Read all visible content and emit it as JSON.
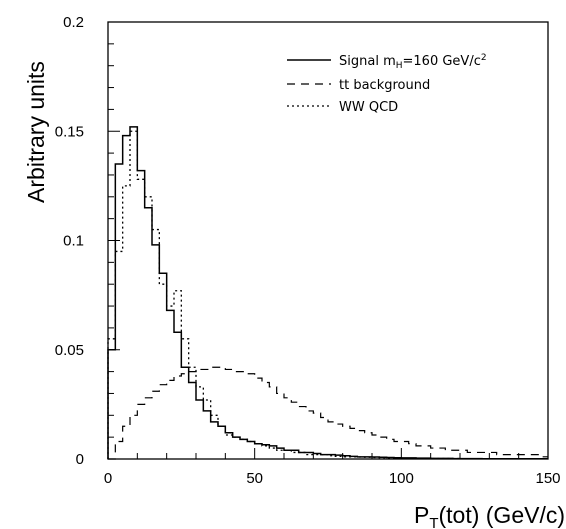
{
  "chart_data": {
    "type": "line",
    "xlabel": "P_T(tot) (GeV/c)",
    "xlabel_main": "P",
    "xlabel_sub": "T",
    "xlabel_rest": "(tot) (GeV/c)",
    "ylabel": "Arbitrary units",
    "xlim": [
      0,
      150
    ],
    "ylim": [
      0,
      0.2
    ],
    "x_ticks": [
      0,
      50,
      100,
      150
    ],
    "x_tick_labels": [
      "0",
      "50",
      "100",
      "150"
    ],
    "y_ticks": [
      0,
      0.05,
      0.1,
      0.15,
      0.2
    ],
    "y_tick_labels": [
      "0",
      "0.05",
      "0.1",
      "0.15",
      "0.2"
    ],
    "grid": false,
    "legend_position": "top-right",
    "bin_width": 2.5,
    "series": [
      {
        "name": "Signal m_H=160 GeV/c^2",
        "legend_main": "Signal m",
        "legend_sub": "H",
        "legend_mid": "=160 GeV/c",
        "legend_sup": "2",
        "line_style": "solid",
        "x": [
          0,
          2.5,
          5,
          7.5,
          10,
          12.5,
          15,
          17.5,
          20,
          22.5,
          25,
          27.5,
          30,
          32.5,
          35,
          37.5,
          40,
          42.5,
          45,
          47.5,
          50,
          52.5,
          55,
          57.5,
          60,
          62.5,
          65,
          67.5,
          70,
          72.5,
          75,
          77.5,
          80,
          82.5,
          85,
          87.5,
          90,
          92.5,
          95,
          97.5,
          100,
          102.5,
          105,
          107.5,
          110,
          112.5,
          115,
          117.5,
          120,
          122.5,
          125,
          127.5,
          130,
          132.5,
          135,
          137.5,
          140,
          142.5,
          145,
          147.5
        ],
        "y": [
          0.05,
          0.135,
          0.148,
          0.152,
          0.132,
          0.115,
          0.098,
          0.085,
          0.068,
          0.058,
          0.042,
          0.035,
          0.027,
          0.022,
          0.017,
          0.015,
          0.012,
          0.01,
          0.009,
          0.008,
          0.007,
          0.0065,
          0.006,
          0.005,
          0.004,
          0.004,
          0.003,
          0.003,
          0.0025,
          0.002,
          0.002,
          0.0018,
          0.0015,
          0.0012,
          0.001,
          0.001,
          0.0009,
          0.0008,
          0.0007,
          0.0006,
          0.0005,
          0.0005,
          0.0004,
          0.0004,
          0.0003,
          0.0003,
          0.0003,
          0.0002,
          0.0002,
          0.0002,
          0.0002,
          0.0001,
          0.0001,
          0.0001,
          0.0001,
          0.0001,
          0.0001,
          0.0001,
          0.0001,
          0.0001
        ]
      },
      {
        "name": "tt background",
        "legend_text": "tt background",
        "line_style": "dashed",
        "x": [
          0,
          2.5,
          5,
          7.5,
          10,
          12.5,
          15,
          17.5,
          20,
          22.5,
          25,
          27.5,
          30,
          32.5,
          35,
          37.5,
          40,
          42.5,
          45,
          47.5,
          50,
          52.5,
          55,
          57.5,
          60,
          62.5,
          65,
          67.5,
          70,
          72.5,
          75,
          77.5,
          80,
          82.5,
          85,
          87.5,
          90,
          92.5,
          95,
          97.5,
          100,
          102.5,
          105,
          107.5,
          110,
          112.5,
          115,
          117.5,
          120,
          122.5,
          125,
          127.5,
          130,
          132.5,
          135,
          137.5,
          140,
          142.5,
          145,
          147.5
        ],
        "y": [
          0.0,
          0.008,
          0.015,
          0.02,
          0.025,
          0.028,
          0.031,
          0.034,
          0.036,
          0.038,
          0.039,
          0.04,
          0.041,
          0.041,
          0.042,
          0.042,
          0.041,
          0.04,
          0.04,
          0.039,
          0.037,
          0.035,
          0.033,
          0.03,
          0.028,
          0.026,
          0.024,
          0.022,
          0.021,
          0.019,
          0.017,
          0.016,
          0.015,
          0.014,
          0.013,
          0.012,
          0.011,
          0.01,
          0.009,
          0.008,
          0.008,
          0.007,
          0.006,
          0.006,
          0.005,
          0.005,
          0.004,
          0.004,
          0.004,
          0.003,
          0.003,
          0.003,
          0.003,
          0.002,
          0.002,
          0.002,
          0.002,
          0.002,
          0.002,
          0.001
        ]
      },
      {
        "name": "WW QCD",
        "legend_text": "WW QCD",
        "line_style": "dotted",
        "x": [
          0,
          2.5,
          5,
          7.5,
          10,
          12.5,
          15,
          17.5,
          20,
          22.5,
          25,
          27.5,
          30,
          32.5,
          35,
          37.5,
          40,
          42.5,
          45,
          47.5,
          50,
          52.5,
          55,
          57.5,
          60,
          62.5,
          65,
          67.5,
          70,
          72.5,
          75,
          77.5,
          80,
          82.5,
          85,
          87.5,
          90,
          92.5,
          95,
          97.5,
          100,
          102.5,
          105,
          107.5,
          110,
          112.5,
          115,
          117.5,
          120,
          122.5,
          125,
          127.5,
          130,
          132.5,
          135,
          137.5,
          140,
          142.5,
          145,
          147.5
        ],
        "y": [
          0.055,
          0.095,
          0.125,
          0.15,
          0.128,
          0.12,
          0.105,
          0.08,
          0.07,
          0.077,
          0.055,
          0.042,
          0.033,
          0.027,
          0.02,
          0.015,
          0.011,
          0.01,
          0.009,
          0.008,
          0.007,
          0.006,
          0.005,
          0.004,
          0.004,
          0.003,
          0.003,
          0.002,
          0.002,
          0.002,
          0.0015,
          0.0012,
          0.001,
          0.001,
          0.0009,
          0.0008,
          0.0007,
          0.0006,
          0.0005,
          0.0004,
          0.0004,
          0.0003,
          0.0003,
          0.0003,
          0.0002,
          0.0002,
          0.0002,
          0.0002,
          0.0001,
          0.0001,
          0.0001,
          0.0001,
          0.0001,
          0.0001,
          0.0001,
          0.0001,
          0.0001,
          0.0001,
          0.0001,
          0.0001
        ]
      }
    ]
  }
}
